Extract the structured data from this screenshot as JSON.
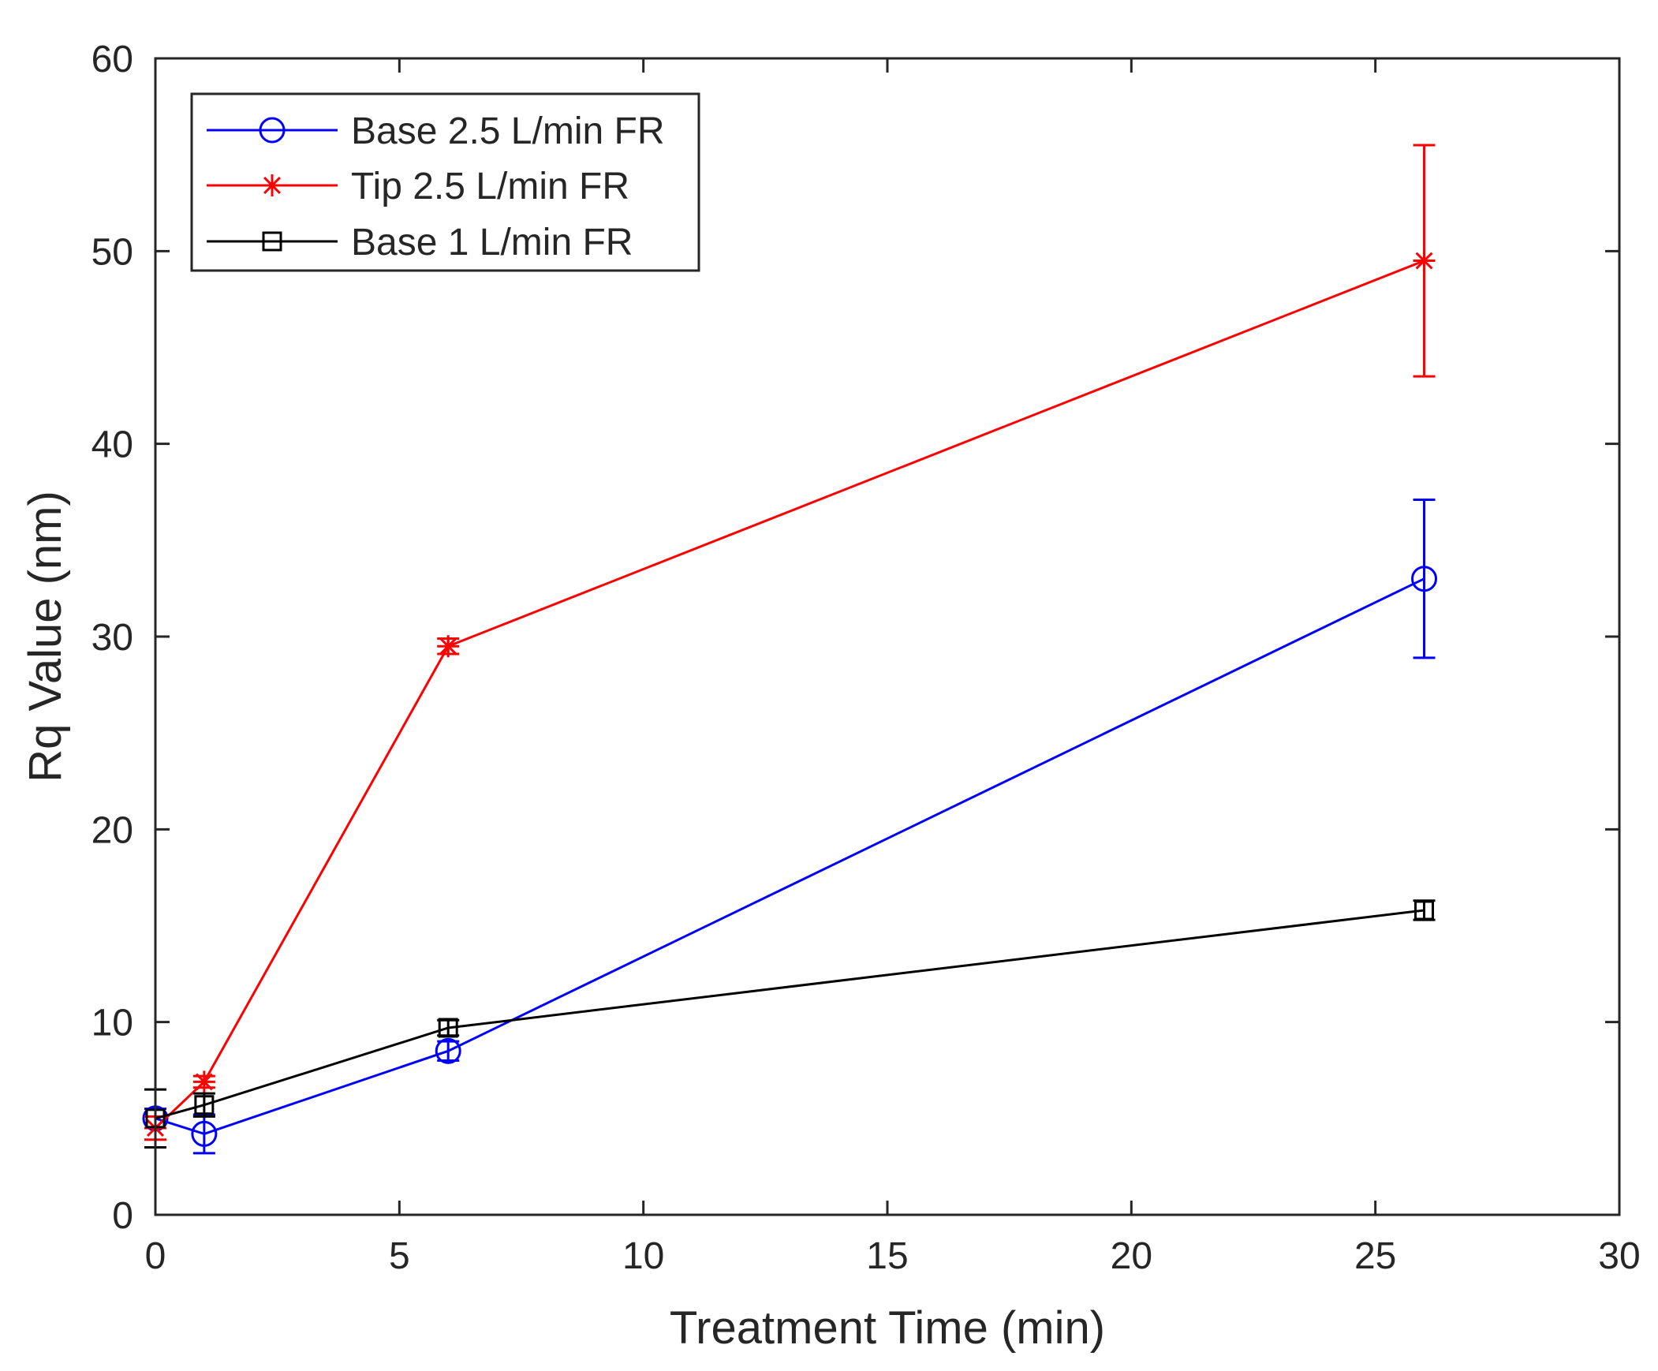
{
  "chart_data": {
    "type": "line",
    "title": "",
    "xlabel": "Treatment Time (min)",
    "ylabel": "Rq Value (nm)",
    "xlim": [
      0,
      30
    ],
    "ylim": [
      0,
      60
    ],
    "xticks": [
      0,
      5,
      10,
      15,
      20,
      25,
      30
    ],
    "yticks": [
      0,
      10,
      20,
      30,
      40,
      50,
      60
    ],
    "xtick_labels": [
      "0",
      "5",
      "10",
      "15",
      "20",
      "25",
      "30"
    ],
    "ytick_labels": [
      "0",
      "10",
      "20",
      "30",
      "40",
      "50",
      "60"
    ],
    "grid": false,
    "legend_position": "top-left",
    "series": [
      {
        "name": "Base 2.5 L/min FR",
        "color": "#0000ff",
        "marker": "circle",
        "x": [
          0,
          1,
          6,
          26
        ],
        "y": [
          5.0,
          4.2,
          8.5,
          33.0
        ],
        "err": [
          0.5,
          1.0,
          0.5,
          4.1
        ]
      },
      {
        "name": "Tip 2.5 L/min FR",
        "color": "#ff0000",
        "marker": "asterisk",
        "x": [
          0,
          1,
          6,
          26
        ],
        "y": [
          4.5,
          6.9,
          29.5,
          49.5
        ],
        "err": [
          0.6,
          0.3,
          0.4,
          6.0
        ]
      },
      {
        "name": "Base 1 L/min FR",
        "color": "#000000",
        "marker": "square",
        "x": [
          0,
          1,
          6,
          26
        ],
        "y": [
          5.0,
          5.7,
          9.7,
          15.8
        ],
        "err": [
          1.5,
          0.6,
          0.4,
          0.5
        ]
      }
    ]
  }
}
